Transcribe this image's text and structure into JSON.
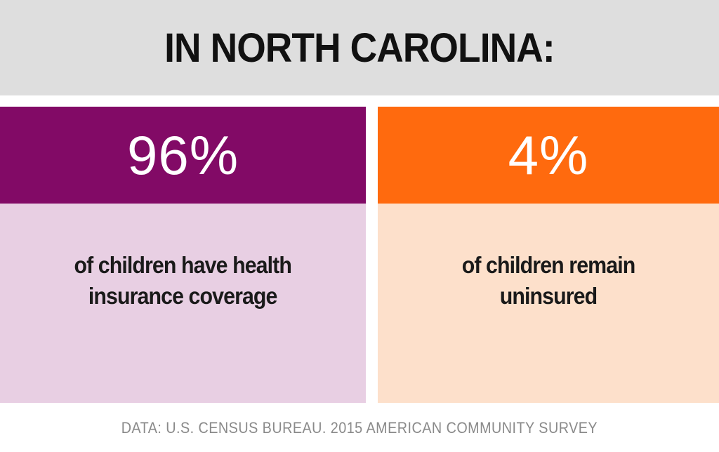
{
  "header": {
    "title": "IN NORTH CAROLINA:"
  },
  "panels": [
    {
      "value": "96%",
      "percent": 96,
      "description_line1": "of children have health",
      "description_line2": "insurance coverage",
      "band_color": "#820a66",
      "area_color": "#e8cfe3"
    },
    {
      "value": "4%",
      "percent": 4,
      "description_line1": "of children remain",
      "description_line2": "uninsured",
      "band_color": "#ff6a0e",
      "area_color": "#fde0cb"
    }
  ],
  "footer": {
    "source": "DATA: U.S. CENSUS BUREAU. 2015 AMERICAN COMMUNITY SURVEY"
  }
}
